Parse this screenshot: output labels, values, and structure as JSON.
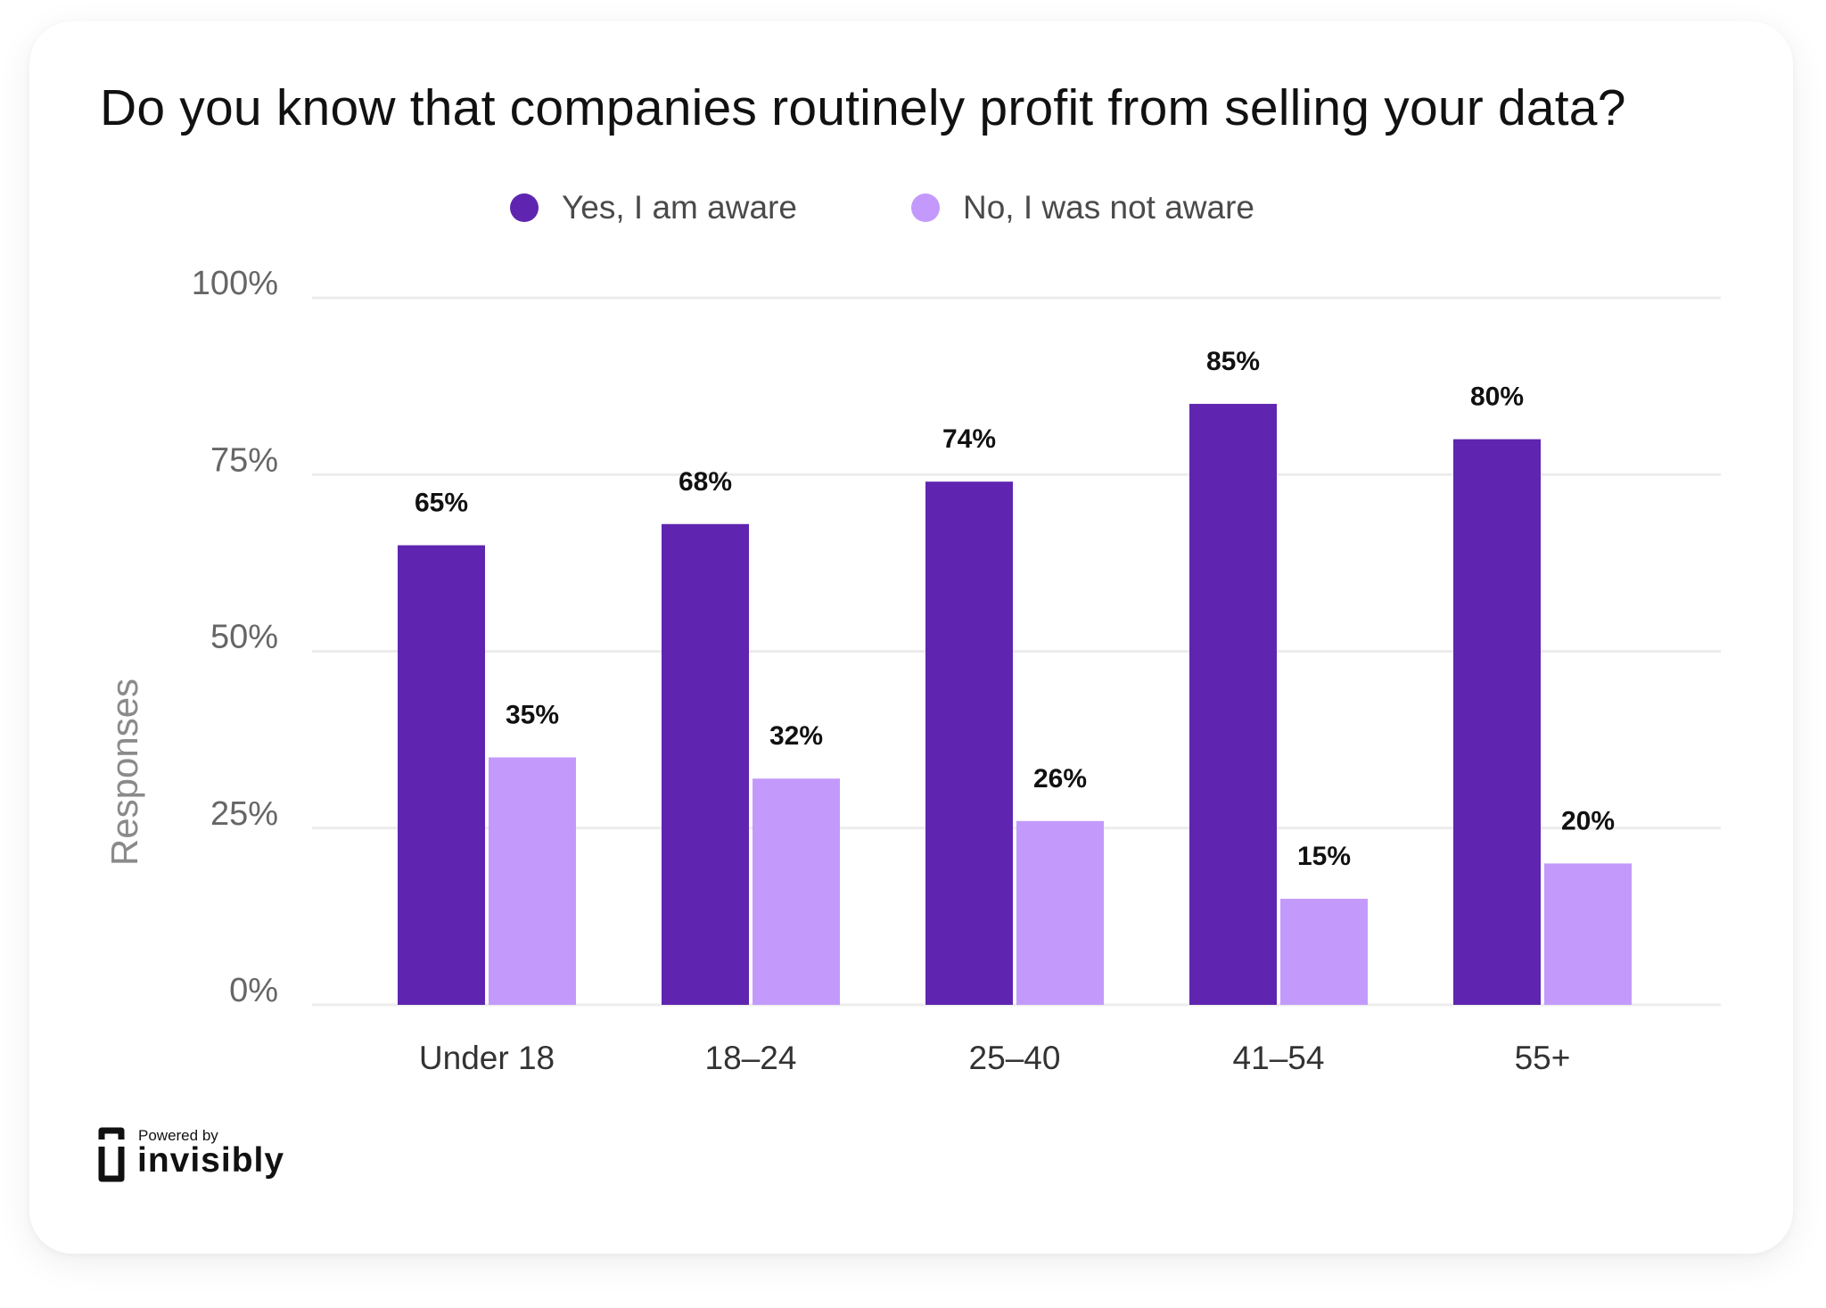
{
  "chart_data": {
    "type": "bar",
    "title": "Do you know that companies routinely profit from selling your data?",
    "ylabel": "Responses",
    "xlabel": "",
    "categories": [
      "Under 18",
      "18–24",
      "25–40",
      "41–54",
      "55+"
    ],
    "series": [
      {
        "name": "Yes, I am aware",
        "color": "#5f25b0",
        "values": [
          65,
          68,
          74,
          85,
          80
        ],
        "labels": [
          "65%",
          "68%",
          "74%",
          "85%",
          "80%"
        ]
      },
      {
        "name": "No, I was not aware",
        "color": "#c39afc",
        "values": [
          35,
          32,
          26,
          15,
          20
        ],
        "labels": [
          "35%",
          "32%",
          "26%",
          "15%",
          "20%"
        ]
      }
    ],
    "ylim": [
      0,
      100
    ],
    "yticks": [
      0,
      25,
      50,
      75,
      100
    ],
    "ytick_labels": [
      "0%",
      "25%",
      "50%",
      "75%",
      "100%"
    ],
    "grid": true,
    "legend_position": "top-center"
  },
  "branding": {
    "powered_by": "Powered by",
    "name": "invisibly"
  }
}
